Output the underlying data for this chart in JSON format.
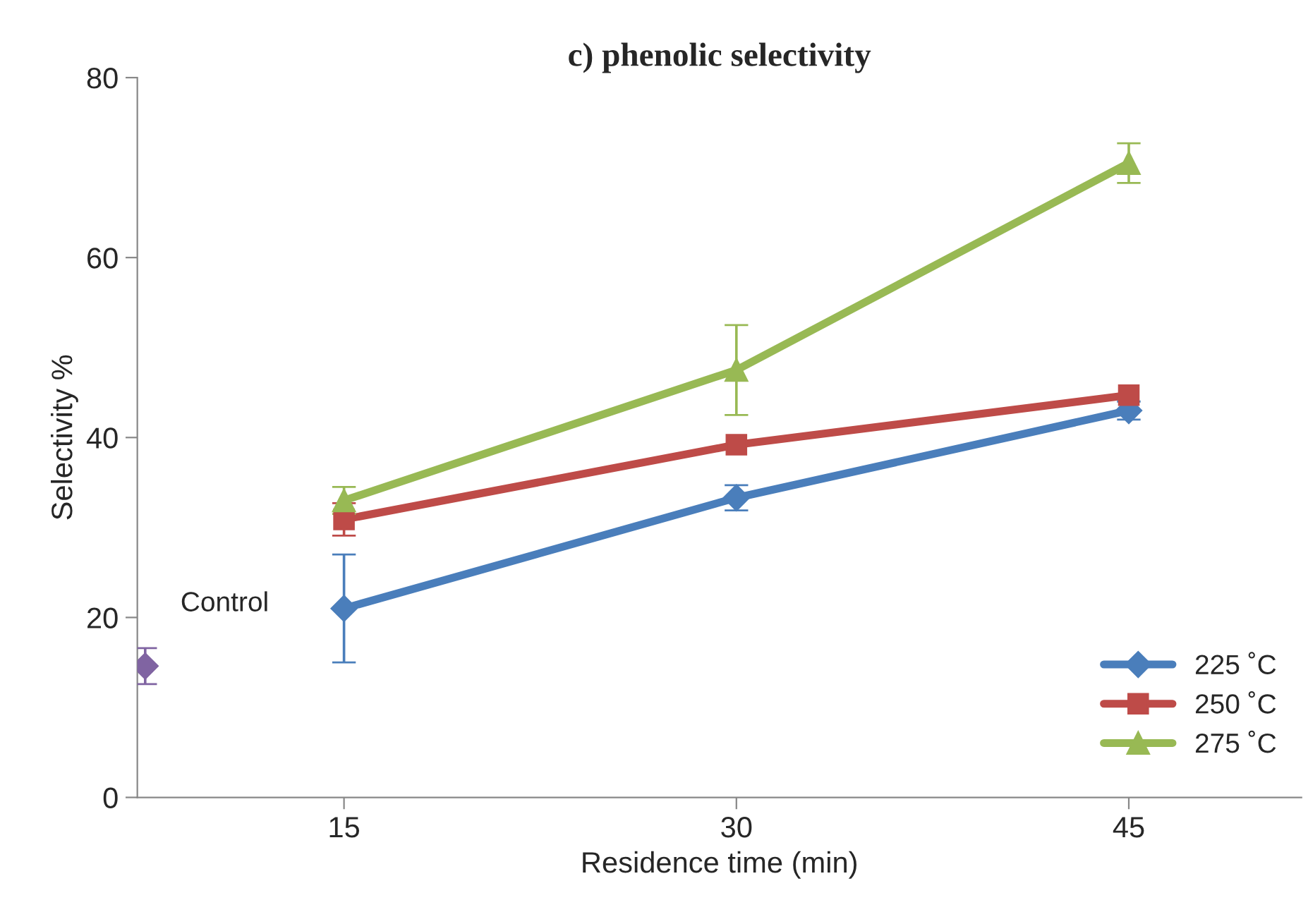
{
  "chart_data": {
    "type": "line",
    "title": "c) phenolic selectivity",
    "xlabel": "Residence time (min)",
    "ylabel": "Selectivity %",
    "xlim": [
      7.1,
      51.6
    ],
    "xticks": [
      15,
      30,
      45
    ],
    "ylim": [
      0,
      80
    ],
    "yticks": [
      0,
      20,
      40,
      60,
      80
    ],
    "grid": false,
    "legend": "bottom right",
    "series": [
      {
        "name": "225 ˚C",
        "color": "#4a7ebb",
        "marker": "diamond",
        "x": [
          15,
          30,
          45
        ],
        "values": [
          21.0,
          33.3,
          43.0
        ],
        "errors": [
          6.0,
          1.4,
          1.0
        ]
      },
      {
        "name": "250 ˚C",
        "color": "#be4b48",
        "marker": "square",
        "x": [
          15,
          30,
          45
        ],
        "values": [
          30.9,
          39.2,
          44.7
        ],
        "errors": [
          1.8,
          null,
          null
        ]
      },
      {
        "name": "275 ˚C",
        "color": "#98b954",
        "marker": "triangle",
        "x": [
          15,
          30,
          45
        ],
        "values": [
          33.0,
          47.5,
          70.5
        ],
        "errors": [
          1.5,
          5.0,
          2.2
        ]
      },
      {
        "type": "scatter",
        "color": "#8064a2",
        "marker": "diamond",
        "x": [
          7.4
        ],
        "values": [
          14.6
        ],
        "errors": [
          2.0
        ]
      }
    ],
    "annotations": [
      {
        "text": "Control",
        "x": 7.4,
        "y": 14.6
      }
    ]
  }
}
